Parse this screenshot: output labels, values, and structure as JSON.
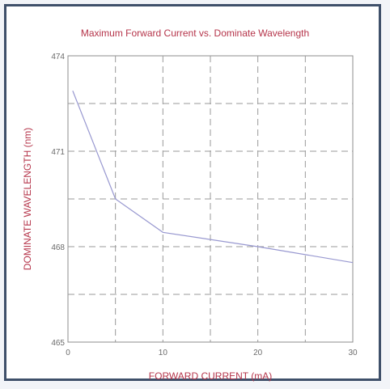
{
  "chart_data": {
    "type": "line",
    "title": "Maximum Forward Current vs. Dominate Wavelength",
    "xlabel": "FORWARD CURRENT (mA)",
    "ylabel": "DOMINATE WAVELENGTH (nm)",
    "xlim": [
      0,
      30
    ],
    "ylim": [
      465,
      474
    ],
    "x_ticks": [
      0,
      10,
      20,
      30
    ],
    "y_ticks": [
      465,
      468,
      471,
      474
    ],
    "x_grid": [
      5,
      10,
      15,
      20,
      25
    ],
    "y_grid": [
      466.5,
      468,
      469.5,
      471,
      472.5
    ],
    "grid": true,
    "line_color": "#9898d0",
    "series": [
      {
        "x": [
          0.5,
          5,
          10,
          20,
          30
        ],
        "y": [
          472.9,
          469.5,
          468.45,
          468.0,
          467.5
        ]
      }
    ]
  }
}
